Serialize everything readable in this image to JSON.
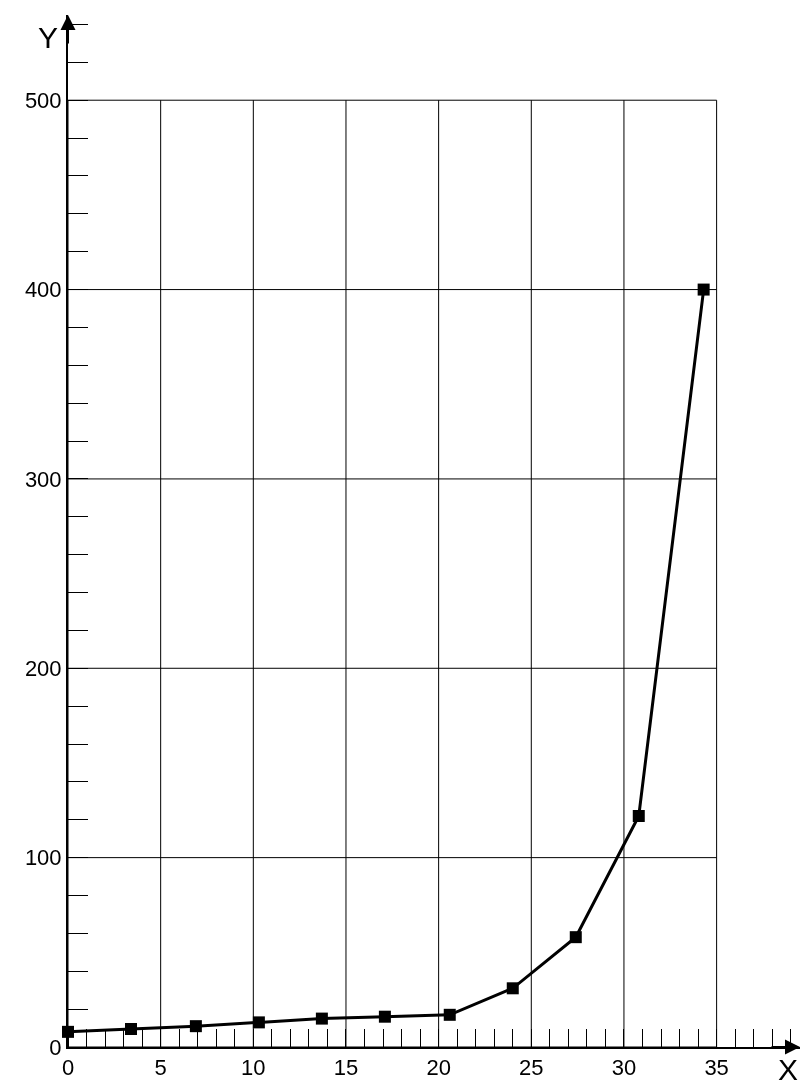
{
  "chart_data": {
    "type": "line",
    "xlabel": "X",
    "ylabel": "Y",
    "x": [
      0,
      3.4,
      6.9,
      10.3,
      13.7,
      17.1,
      20.6,
      24.0,
      27.4,
      30.8,
      34.3
    ],
    "series": [
      {
        "color": "#000000",
        "values": [
          8,
          9.5,
          11,
          13,
          15,
          16,
          17,
          31,
          58,
          122,
          400
        ]
      }
    ],
    "xlim": [
      0,
      39.5
    ],
    "ylim": [
      0,
      545
    ],
    "xticks": [
      0,
      5,
      10,
      15,
      20,
      25,
      30,
      35
    ],
    "yticks": [
      0,
      100,
      200,
      300,
      400,
      500
    ],
    "grid": true,
    "legend": false,
    "marker": "square",
    "line_style": "solid"
  }
}
